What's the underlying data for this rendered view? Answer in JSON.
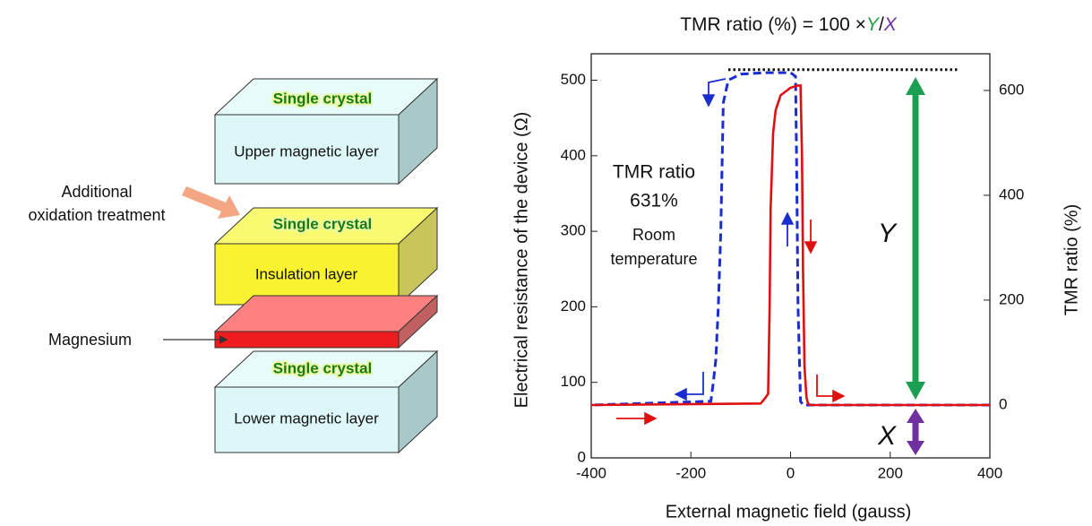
{
  "diagram": {
    "labels": {
      "additional": "Additional",
      "oxidation": "oxidation treatment",
      "magnesium": "Magnesium"
    },
    "layers": [
      {
        "top": "Single crystal",
        "front": "Upper magnetic layer"
      },
      {
        "top": "Single crystal",
        "front": "Insulation layer"
      },
      {
        "top": "Single crystal",
        "front": "Lower magnetic layer"
      }
    ]
  },
  "chart_data": {
    "type": "line",
    "title": "TMR ratio  (%) = 100 ×",
    "title_y": "Y",
    "title_sep": "/",
    "title_x": "X",
    "xlabel": "External magnetic field (gauss)",
    "ylabel": "Electrical resistance of the device (Ω)",
    "y2label": "TMR ratio (%)",
    "xlim": [
      -400,
      400
    ],
    "xticks": [
      -400,
      -200,
      0,
      200,
      400
    ],
    "ylim": [
      0,
      535
    ],
    "yticks": [
      0,
      100,
      200,
      300,
      400,
      500
    ],
    "y2lim": [
      -101,
      670
    ],
    "y2ticks": [
      0,
      200,
      400,
      600
    ],
    "series": [
      {
        "color": "#e01010",
        "dash": false,
        "x": [
          -400,
          -60,
          -50,
          -45,
          -42,
          -40,
          -35,
          -30,
          -25,
          -20,
          -10,
          0,
          15,
          20,
          23,
          25,
          28,
          32,
          35,
          40,
          400
        ],
        "values": [
          70,
          72,
          80,
          85,
          200,
          330,
          430,
          460,
          470,
          480,
          485,
          490,
          493,
          493,
          400,
          250,
          120,
          80,
          72,
          70,
          70
        ]
      },
      {
        "color": "#1a2ed0",
        "dash": true,
        "x": [
          400,
          25,
          20,
          15,
          12,
          10,
          0,
          -50,
          -100,
          -125,
          -135,
          -140,
          -145,
          -150,
          -155,
          -160,
          -400
        ],
        "values": [
          70,
          70,
          75,
          200,
          400,
          505,
          510,
          510,
          508,
          500,
          470,
          300,
          200,
          130,
          100,
          75,
          70
        ]
      }
    ],
    "max_line": {
      "value": 514,
      "x": [
        -125,
        335
      ]
    },
    "annotations": {
      "tmr": "TMR ratio",
      "tmr_value": "631%",
      "room": "Room",
      "temperature": "temperature",
      "y_letter": "Y",
      "x_letter": "X"
    }
  }
}
